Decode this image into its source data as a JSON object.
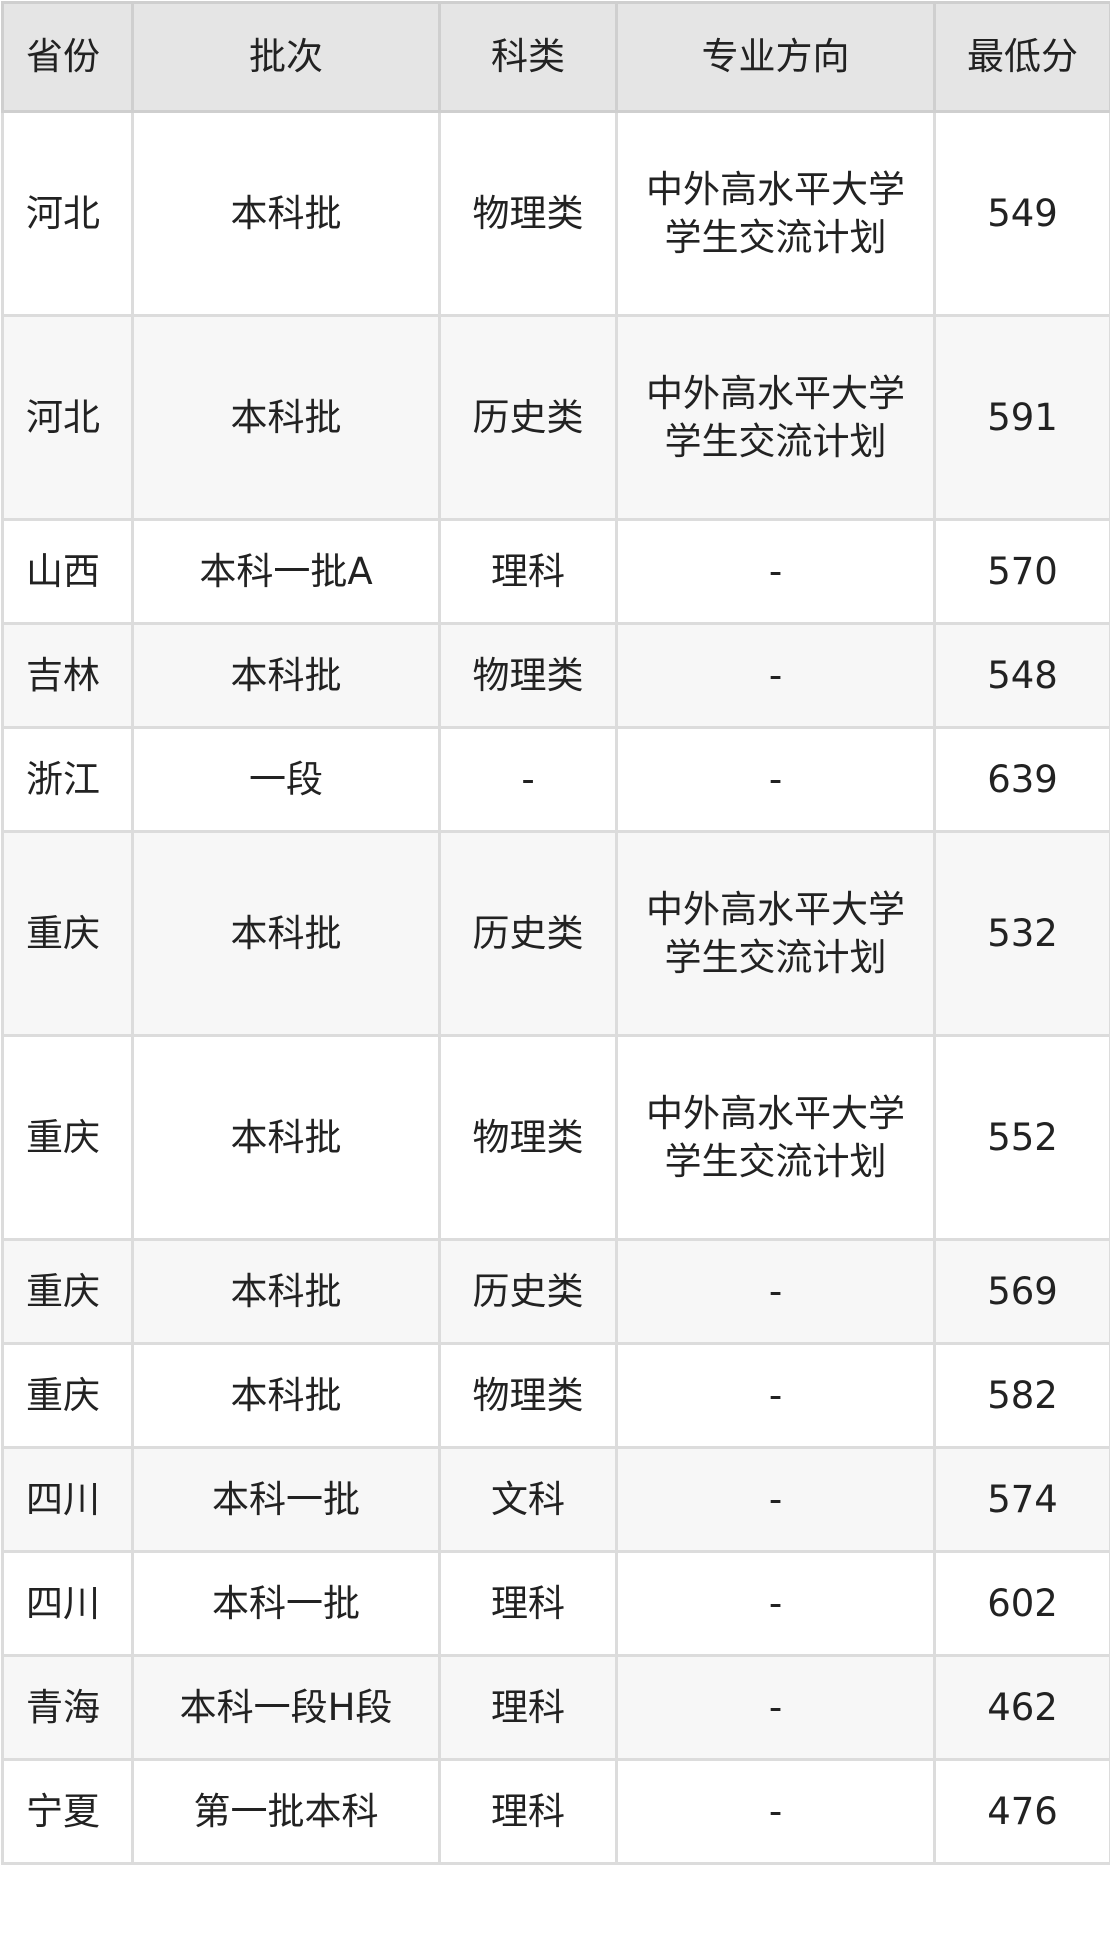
{
  "table": {
    "headers": [
      "省份",
      "批次",
      "科类",
      "专业方向",
      "最低分"
    ],
    "rows": [
      [
        "河北",
        "本科批",
        "物理类",
        "中外高水平大学学生交流计划",
        "549"
      ],
      [
        "河北",
        "本科批",
        "历史类",
        "中外高水平大学学生交流计划",
        "591"
      ],
      [
        "山西",
        "本科一批A",
        "理科",
        "-",
        "570"
      ],
      [
        "吉林",
        "本科批",
        "物理类",
        "-",
        "548"
      ],
      [
        "浙江",
        "一段",
        "-",
        "-",
        "639"
      ],
      [
        "重庆",
        "本科批",
        "历史类",
        "中外高水平大学学生交流计划",
        "532"
      ],
      [
        "重庆",
        "本科批",
        "物理类",
        "中外高水平大学学生交流计划",
        "552"
      ],
      [
        "重庆",
        "本科批",
        "历史类",
        "-",
        "569"
      ],
      [
        "重庆",
        "本科批",
        "物理类",
        "-",
        "582"
      ],
      [
        "四川",
        "本科一批",
        "文科",
        "-",
        "574"
      ],
      [
        "四川",
        "本科一批",
        "理科",
        "-",
        "602"
      ],
      [
        "青海",
        "本科一段H段",
        "理科",
        "-",
        "462"
      ],
      [
        "宁夏",
        "第一批本科",
        "理科",
        "-",
        "476"
      ]
    ]
  },
  "colors": {
    "header_bg": "#e5e5e5",
    "stripe_bg": "#f7f7f7",
    "border": "#dcdcdc",
    "text": "#222222"
  }
}
